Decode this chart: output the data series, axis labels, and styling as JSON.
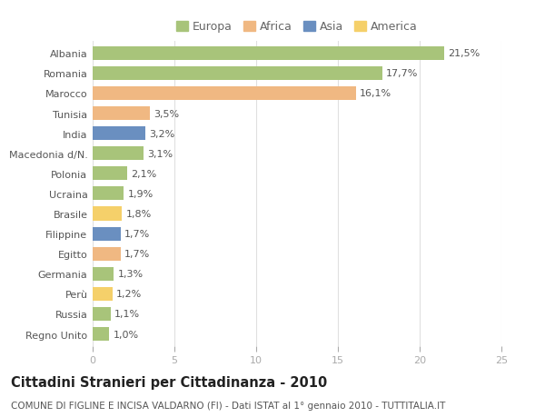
{
  "categories": [
    "Albania",
    "Romania",
    "Marocco",
    "Tunisia",
    "India",
    "Macedonia d/N.",
    "Polonia",
    "Ucraina",
    "Brasile",
    "Filippine",
    "Egitto",
    "Germania",
    "Perù",
    "Russia",
    "Regno Unito"
  ],
  "values": [
    21.5,
    17.7,
    16.1,
    3.5,
    3.2,
    3.1,
    2.1,
    1.9,
    1.8,
    1.7,
    1.7,
    1.3,
    1.2,
    1.1,
    1.0
  ],
  "labels": [
    "21,5%",
    "17,7%",
    "16,1%",
    "3,5%",
    "3,2%",
    "3,1%",
    "2,1%",
    "1,9%",
    "1,8%",
    "1,7%",
    "1,7%",
    "1,3%",
    "1,2%",
    "1,1%",
    "1,0%"
  ],
  "colors": [
    "#a8c47a",
    "#a8c47a",
    "#f0b882",
    "#f0b882",
    "#6a8fc0",
    "#a8c47a",
    "#a8c47a",
    "#a8c47a",
    "#f5d06a",
    "#6a8fc0",
    "#f0b882",
    "#a8c47a",
    "#f5d06a",
    "#a8c47a",
    "#a8c47a"
  ],
  "legend_labels": [
    "Europa",
    "Africa",
    "Asia",
    "America"
  ],
  "legend_colors": [
    "#a8c47a",
    "#f0b882",
    "#6a8fc0",
    "#f5d06a"
  ],
  "title": "Cittadini Stranieri per Cittadinanza - 2010",
  "subtitle": "COMUNE DI FIGLINE E INCISA VALDARNO (FI) - Dati ISTAT al 1° gennaio 2010 - TUTTITALIA.IT",
  "xlim": [
    0,
    25
  ],
  "xticks": [
    0,
    5,
    10,
    15,
    20,
    25
  ],
  "bg_color": "#ffffff",
  "grid_color": "#e0e0e0",
  "bar_height": 0.68,
  "title_fontsize": 10.5,
  "subtitle_fontsize": 7.5,
  "label_fontsize": 8,
  "tick_fontsize": 8,
  "legend_fontsize": 9
}
